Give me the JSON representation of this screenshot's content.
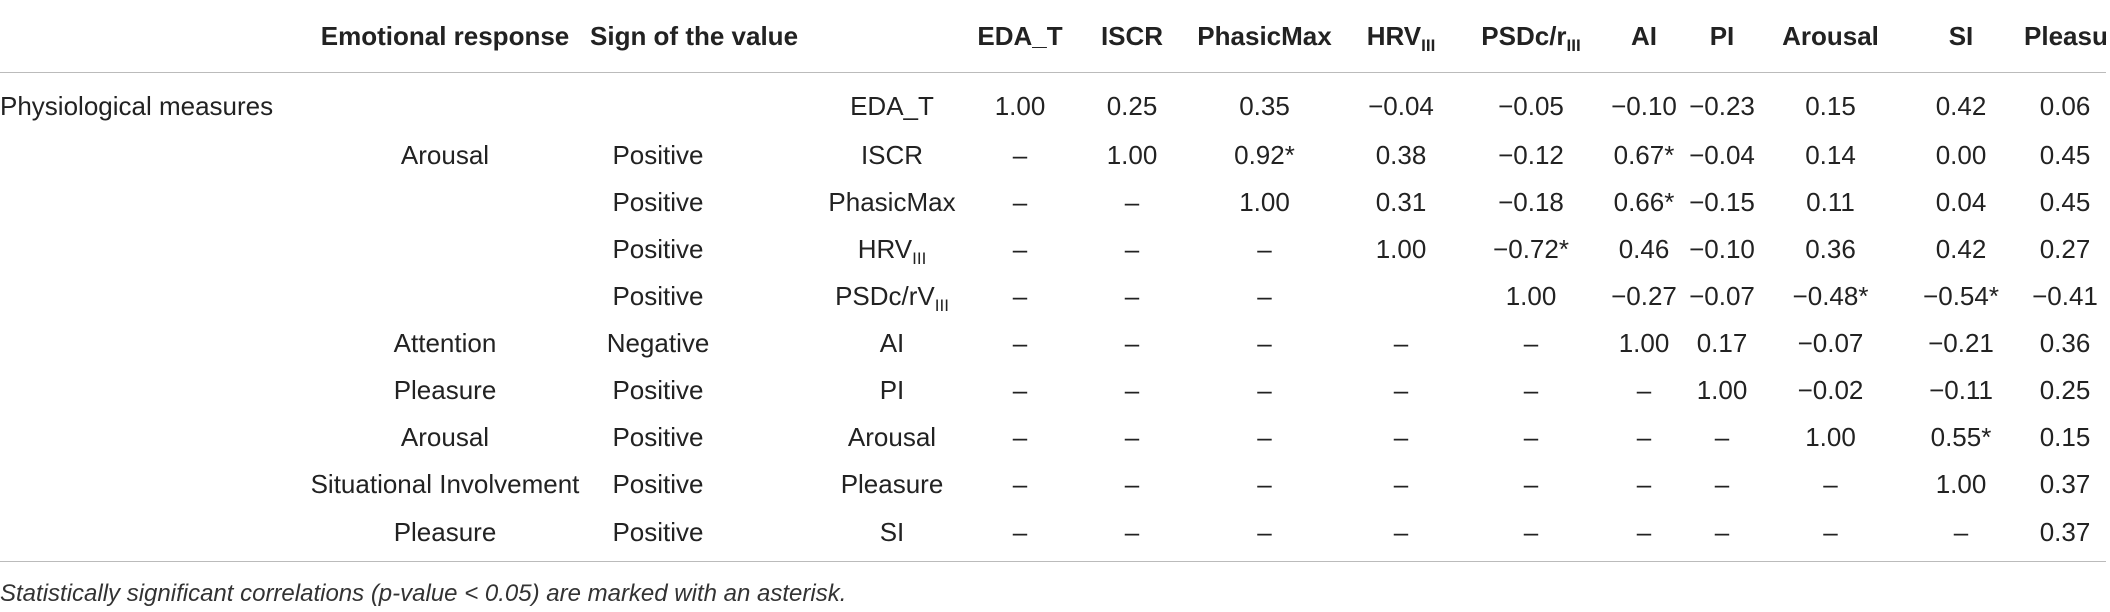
{
  "header": {
    "col0": "",
    "emotional_response": "Emotional response",
    "sign_of_value": "Sign of the value",
    "measure": "",
    "cols": [
      {
        "main": "EDA_T",
        "sub": ""
      },
      {
        "main": "ISCR",
        "sub": ""
      },
      {
        "main": "PhasicMax",
        "sub": ""
      },
      {
        "main": "HRV",
        "sub": "III"
      },
      {
        "main": "PSDc/r",
        "sub": "III"
      },
      {
        "main": "AI",
        "sub": ""
      },
      {
        "main": "PI",
        "sub": ""
      },
      {
        "main": "Arousal",
        "sub": ""
      },
      {
        "main": "SI",
        "sub": ""
      },
      {
        "main": "Pleasure",
        "sub": ""
      }
    ]
  },
  "rows": [
    {
      "group": "Physiological measures",
      "response": "",
      "sign": "",
      "measure": "EDA_T",
      "measure_sub": "",
      "values": [
        "1.00",
        "0.25",
        "0.35",
        "−0.04",
        "−0.05",
        "−0.10",
        "−0.23",
        "0.15",
        "0.42",
        "0.06"
      ]
    },
    {
      "group": "",
      "response": "Arousal",
      "sign": "Positive",
      "measure": "ISCR",
      "measure_sub": "",
      "values": [
        "–",
        "1.00",
        "0.92*",
        "0.38",
        "−0.12",
        "0.67*",
        "−0.04",
        "0.14",
        "0.00",
        "0.45"
      ]
    },
    {
      "group": "",
      "response": "",
      "sign": "Positive",
      "measure": "PhasicMax",
      "measure_sub": "",
      "values": [
        "–",
        "–",
        "1.00",
        "0.31",
        "−0.18",
        "0.66*",
        "−0.15",
        "0.11",
        "0.04",
        "0.45"
      ]
    },
    {
      "group": "",
      "response": "",
      "sign": "Positive",
      "measure": "HRV",
      "measure_sub": "III",
      "values": [
        "–",
        "–",
        "–",
        "1.00",
        "−0.72*",
        "0.46",
        "−0.10",
        "0.36",
        "0.42",
        "0.27"
      ]
    },
    {
      "group": "",
      "response": "",
      "sign": "Positive",
      "measure": "PSDc/rV",
      "measure_sub": "III",
      "values": [
        "–",
        "–",
        "–",
        "",
        "1.00",
        "−0.27",
        "−0.07",
        "−0.48*",
        "−0.54*",
        "−0.41"
      ]
    },
    {
      "group": "",
      "response": "Attention",
      "sign": "Negative",
      "measure": "AI",
      "measure_sub": "",
      "values": [
        "–",
        "–",
        "–",
        "–",
        "–",
        "1.00",
        "0.17",
        "−0.07",
        "−0.21",
        "0.36"
      ]
    },
    {
      "group": "",
      "response": "Pleasure",
      "sign": "Positive",
      "measure": "PI",
      "measure_sub": "",
      "values": [
        "–",
        "–",
        "–",
        "–",
        "–",
        "–",
        "1.00",
        "−0.02",
        "−0.11",
        "0.25"
      ]
    },
    {
      "group": "",
      "response": "Arousal",
      "sign": "Positive",
      "measure": "Arousal",
      "measure_sub": "",
      "values": [
        "–",
        "–",
        "–",
        "–",
        "–",
        "–",
        "–",
        "1.00",
        "0.55*",
        "0.15"
      ]
    },
    {
      "group": "",
      "response": "Situational Involvement",
      "sign": "Positive",
      "measure": "Pleasure",
      "measure_sub": "",
      "values": [
        "–",
        "–",
        "–",
        "–",
        "–",
        "–",
        "–",
        "–",
        "1.00",
        "0.37"
      ]
    },
    {
      "group": "",
      "response": "Pleasure",
      "sign": "Positive",
      "measure": "SI",
      "measure_sub": "",
      "values": [
        "–",
        "–",
        "–",
        "–",
        "–",
        "–",
        "–",
        "–",
        "–",
        "0.37"
      ]
    }
  ],
  "footnote": "Statistically significant correlations (p-value < 0.05) are marked with an asterisk."
}
